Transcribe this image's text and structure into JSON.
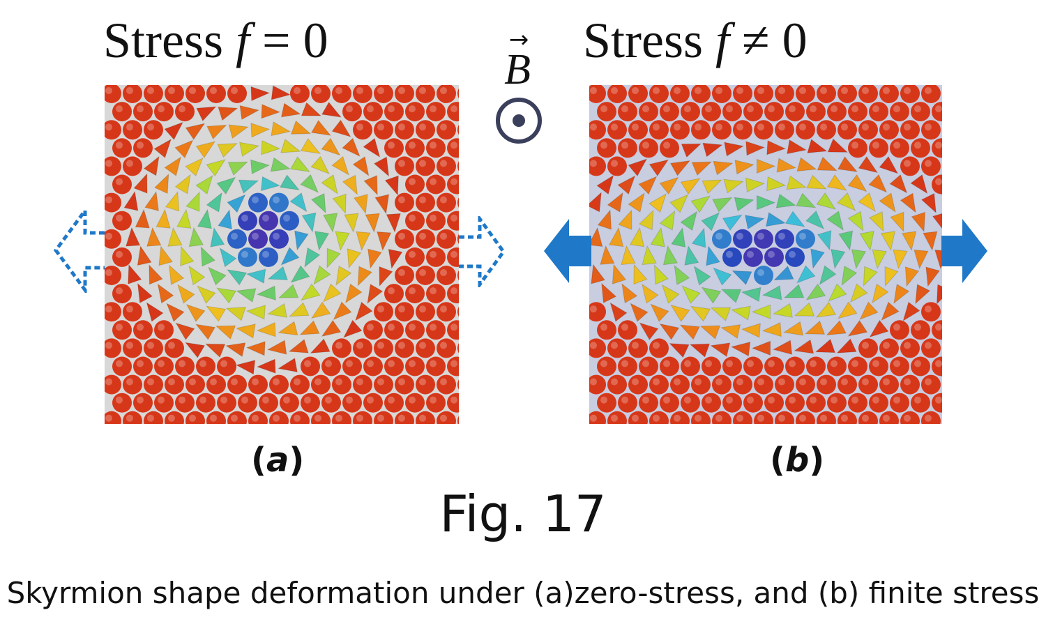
{
  "panels": {
    "a": {
      "title_prefix": "Stress ",
      "title_var": "f",
      "title_rel": " = 0",
      "label_open": "(",
      "label_letter": "a",
      "label_close": ")"
    },
    "b": {
      "title_prefix": "Stress ",
      "title_var": "f",
      "title_rel": " ≠ 0",
      "label_open": "(",
      "label_letter": "b",
      "label_close": ")"
    }
  },
  "field": {
    "symbol": "B",
    "vector_mark": "→"
  },
  "figure_label": "Fig. 17",
  "caption": "Skyrmion shape deformation under (a)zero-stress, and (b) finite stress",
  "colors": {
    "arrow_blue": "#1f78c8",
    "core": "#6a2aa8",
    "outer": "#d83a1e"
  }
}
